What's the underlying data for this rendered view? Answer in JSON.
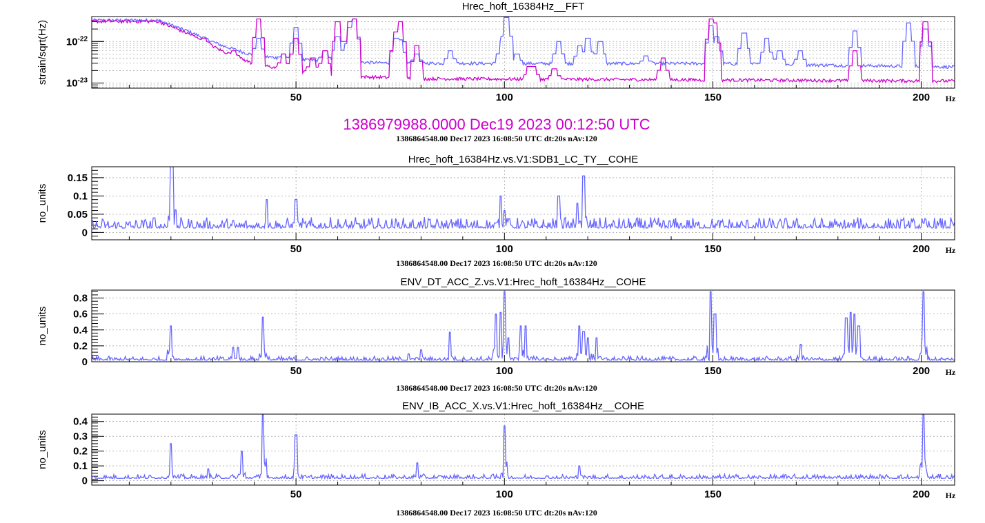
{
  "chart_data": [
    {
      "type": "line",
      "title": "Hrec_hoft_16384Hz__FFT",
      "ylabel": "strain/sqrt(Hz)",
      "xunit": "Hz",
      "xlim": [
        1,
        208
      ],
      "ylim": [
        7.5e-24,
        4e-22
      ],
      "yscale": "log",
      "xticks": [
        50,
        100,
        150,
        200
      ],
      "yticks": [
        {
          "value": 1e-23,
          "label": "10",
          "exp": "-23"
        },
        {
          "value": 1e-22,
          "label": "10",
          "exp": "-22"
        }
      ],
      "grid": true,
      "footer": "",
      "series": [
        {
          "color": "#6666ff",
          "floor": 2.4e-23,
          "lowfreq": [
            [
              1,
              3.2e-22
            ],
            [
              17,
              3.2e-22
            ],
            [
              25,
              1.6e-22
            ],
            [
              32,
              8e-23
            ],
            [
              40,
              4.5e-23
            ],
            [
              50,
              3.6e-23
            ],
            [
              70,
              3e-23
            ],
            [
              100,
              2.9e-23
            ],
            [
              150,
              2.9e-23
            ],
            [
              208,
              2.4e-23
            ]
          ],
          "peaks": [
            [
              41,
              1.2e-22
            ],
            [
              47,
              5e-23
            ],
            [
              50,
              2.2e-22
            ],
            [
              57,
              6e-23
            ],
            [
              60,
              1.3e-22
            ],
            [
              63,
              2.2e-22
            ],
            [
              64,
              3.5e-22
            ],
            [
              74,
              1.2e-22
            ],
            [
              75,
              1.1e-22
            ],
            [
              79,
              5e-23
            ],
            [
              87,
              6e-23
            ],
            [
              99.5,
              1e-22
            ],
            [
              100.5,
              3.8e-22
            ],
            [
              103,
              5e-23
            ],
            [
              113,
              1e-22
            ],
            [
              118,
              8e-23
            ],
            [
              120,
              1.2e-22
            ],
            [
              123,
              1e-22
            ],
            [
              134,
              4.5e-23
            ],
            [
              149.5,
              2.4e-22
            ],
            [
              151,
              1.3e-22
            ],
            [
              157.5,
              1.6e-22
            ],
            [
              163,
              1.2e-22
            ],
            [
              166,
              6e-23
            ],
            [
              171,
              6e-23
            ],
            [
              184,
              1.8e-22
            ],
            [
              197,
              2.8e-22
            ],
            [
              201,
              2e-22
            ]
          ]
        },
        {
          "color": "#cc00cc",
          "floor": 1.2e-23,
          "lowfreq": [
            [
              1,
              3e-22
            ],
            [
              17,
              3e-22
            ],
            [
              25,
              1.4e-22
            ],
            [
              32,
              6e-23
            ],
            [
              40,
              2.8e-23
            ],
            [
              50,
              1.9e-23
            ],
            [
              65,
              1.4e-23
            ],
            [
              80,
              1.25e-23
            ],
            [
              208,
              1.1e-23
            ]
          ],
          "peaks": [
            [
              28,
              1.2e-22
            ],
            [
              35,
              6e-23
            ],
            [
              41,
              3.5e-22
            ],
            [
              47,
              5e-23
            ],
            [
              50,
              1.2e-22
            ],
            [
              54,
              4e-23
            ],
            [
              57,
              6e-23
            ],
            [
              60,
              3e-22
            ],
            [
              63,
              3e-22
            ],
            [
              64,
              3.5e-22
            ],
            [
              74,
              1.7e-22
            ],
            [
              75,
              3e-22
            ],
            [
              79,
              8e-23
            ],
            [
              106,
              2.5e-23
            ],
            [
              107,
              2.5e-23
            ],
            [
              112,
              2.2e-23
            ],
            [
              138,
              4e-23
            ],
            [
              149.5,
              3.5e-22
            ],
            [
              150.5,
              2.8e-22
            ],
            [
              184,
              6e-23
            ],
            [
              201,
              3e-22
            ]
          ]
        }
      ]
    },
    {
      "type": "line",
      "title": "Hrec_hoft_16384Hz.vs.V1:SDB1_LC_TY__COHE",
      "ylabel": "no_units",
      "xunit": "Hz",
      "xlim": [
        1,
        208
      ],
      "ylim": [
        -0.02,
        0.18
      ],
      "yscale": "linear",
      "xticks": [
        50,
        100,
        150,
        200
      ],
      "yticks": [
        {
          "value": 0,
          "label": "0"
        },
        {
          "value": 0.05,
          "label": "0.05"
        },
        {
          "value": 0.1,
          "label": "0.1"
        },
        {
          "value": 0.15,
          "label": "0.15"
        }
      ],
      "grid": true,
      "footer": "1386864548.00 Dec17 2023 16:08:50 UTC dt:20s nAv:120",
      "series": [
        {
          "color": "#6666ff",
          "floor": 0.012,
          "noise": 0.03,
          "peaks": [
            [
              16,
              0.04
            ],
            [
              20,
              0.18
            ],
            [
              20.5,
              0.18
            ],
            [
              43,
              0.09
            ],
            [
              50,
              0.09
            ],
            [
              99,
              0.1
            ],
            [
              100,
              0.06
            ],
            [
              113,
              0.1
            ],
            [
              117.5,
              0.08
            ],
            [
              119,
              0.155
            ]
          ]
        }
      ]
    },
    {
      "type": "line",
      "title": "ENV_DT_ACC_Z.vs.V1:Hrec_hoft_16384Hz__COHE",
      "ylabel": "no_units",
      "xunit": "Hz",
      "xlim": [
        1,
        208
      ],
      "ylim": [
        0,
        0.9
      ],
      "yscale": "linear",
      "xticks": [
        50,
        100,
        150,
        200
      ],
      "yticks": [
        {
          "value": 0,
          "label": "0"
        },
        {
          "value": 0.2,
          "label": "0.2"
        },
        {
          "value": 0.4,
          "label": "0.4"
        },
        {
          "value": 0.6,
          "label": "0.6"
        },
        {
          "value": 0.8,
          "label": "0.8"
        }
      ],
      "grid": true,
      "footer": "1386864548.00 Dec17 2023 16:08:50 UTC dt:20s nAv:120",
      "series": [
        {
          "color": "#6666ff",
          "floor": 0.02,
          "noise": 0.05,
          "peaks": [
            [
              20,
              0.45
            ],
            [
              35,
              0.18
            ],
            [
              36,
              0.18
            ],
            [
              42,
              0.56
            ],
            [
              77,
              0.1
            ],
            [
              80,
              0.15
            ],
            [
              87,
              0.37
            ],
            [
              98,
              0.6
            ],
            [
              99,
              0.62
            ],
            [
              100,
              0.88
            ],
            [
              101,
              0.3
            ],
            [
              104,
              0.45
            ],
            [
              105,
              0.45
            ],
            [
              118,
              0.45
            ],
            [
              119,
              0.38
            ],
            [
              120,
              0.3
            ],
            [
              122,
              0.3
            ],
            [
              149.5,
              0.88
            ],
            [
              150.5,
              0.6
            ],
            [
              171,
              0.22
            ],
            [
              182,
              0.55
            ],
            [
              183,
              0.62
            ],
            [
              184,
              0.6
            ],
            [
              185,
              0.45
            ],
            [
              200.5,
              0.88
            ]
          ]
        }
      ]
    },
    {
      "type": "line",
      "title": "ENV_IB_ACC_X.vs.V1:Hrec_hoft_16384Hz__COHE",
      "ylabel": "no_units",
      "xunit": "Hz",
      "xlim": [
        1,
        208
      ],
      "ylim": [
        -0.03,
        0.45
      ],
      "yscale": "linear",
      "xticks": [
        50,
        100,
        150,
        200
      ],
      "yticks": [
        {
          "value": 0,
          "label": "0"
        },
        {
          "value": 0.1,
          "label": "0.1"
        },
        {
          "value": 0.2,
          "label": "0.2"
        },
        {
          "value": 0.3,
          "label": "0.3"
        },
        {
          "value": 0.4,
          "label": "0.4"
        }
      ],
      "grid": true,
      "footer": "1386864548.00 Dec17 2023 16:08:50 UTC dt:20s nAv:120",
      "series": [
        {
          "color": "#6666ff",
          "floor": 0.015,
          "noise": 0.03,
          "peaks": [
            [
              20,
              0.25
            ],
            [
              29,
              0.08
            ],
            [
              37,
              0.2
            ],
            [
              42,
              0.45
            ],
            [
              50,
              0.31
            ],
            [
              79,
              0.12
            ],
            [
              100,
              0.37
            ],
            [
              118,
              0.1
            ],
            [
              200.5,
              0.45
            ]
          ]
        }
      ]
    }
  ],
  "stamp": {
    "big": "1386979988.0000 Dec19 2023 00:12:50 UTC",
    "small": "1386864548.00 Dec17 2023 16:08:50 UTC dt:20s nAv:120"
  }
}
